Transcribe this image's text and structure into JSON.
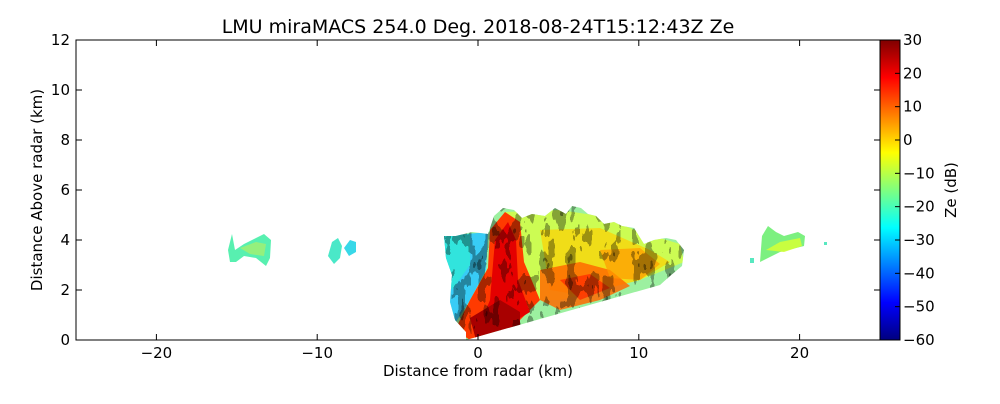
{
  "chart_data": {
    "type": "heatmap",
    "title": "LMU miraMACS 254.0 Deg. 2018-08-24T15:12:43Z  Ze",
    "xlabel": "Distance from radar (km)",
    "ylabel": "Distance Above radar  (km)",
    "xlim": [
      -25,
      25
    ],
    "ylim": [
      0,
      12
    ],
    "xticks": [
      "−20",
      "−10",
      "0",
      "10",
      "20"
    ],
    "xtick_values": [
      -20,
      -10,
      0,
      10,
      20
    ],
    "yticks": [
      "0",
      "2",
      "4",
      "6",
      "8",
      "10",
      "12"
    ],
    "ytick_values": [
      0,
      2,
      4,
      6,
      8,
      10,
      12
    ],
    "colorbar": {
      "label": "Ze (dB)",
      "range": [
        -60,
        30
      ],
      "ticks": [
        "−60",
        "−50",
        "−40",
        "−30",
        "−20",
        "−10",
        "0",
        "10",
        "20",
        "30"
      ],
      "tick_values": [
        -60,
        -50,
        -40,
        -30,
        -20,
        -10,
        0,
        10,
        20,
        30
      ],
      "colormap": "jet",
      "colors": [
        "#00007f",
        "#0000ff",
        "#007fff",
        "#00ffff",
        "#7fff7f",
        "#ffff00",
        "#ff7f00",
        "#ff0000",
        "#7f0000"
      ]
    },
    "echoes": [
      {
        "name": "main-cloud",
        "x_range": [
          -2.2,
          13
        ],
        "top_km": [
          3.8,
          5.3
        ],
        "ze_range_db": [
          -35,
          25
        ]
      },
      {
        "name": "cloud-a",
        "x_range": [
          -15.5,
          -12.9
        ],
        "height_km": [
          2.9,
          4.2
        ],
        "ze_range_db": [
          -30,
          -20
        ]
      },
      {
        "name": "cloud-b",
        "x_range": [
          -9.3,
          -7.7
        ],
        "height_km": [
          3.0,
          4.0
        ],
        "ze_range_db": [
          -30,
          -20
        ]
      },
      {
        "name": "cloud-c",
        "x_range": [
          17.2,
          21.8
        ],
        "height_km": [
          3.0,
          4.5
        ],
        "ze_range_db": [
          -25,
          -5
        ]
      }
    ]
  }
}
